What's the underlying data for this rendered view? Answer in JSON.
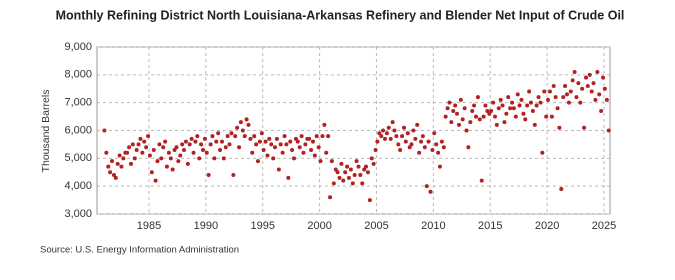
{
  "chart_data": {
    "type": "scatter",
    "title": "Monthly Refining District North Louisiana-Arkansas Refinery and Blender Net Input of Crude Oil",
    "y_label": "Thousand Barrels",
    "source": "Source: U.S. Energy Information Administration",
    "color": "#b22222",
    "xlim": [
      1980.43,
      2025.53
    ],
    "xticks": [
      1985,
      1990,
      1995,
      2000,
      2005,
      2010,
      2015,
      2020,
      2025
    ],
    "ylim": [
      3000,
      9000
    ],
    "yticks": [
      {
        "value": 3000,
        "label": "3,000"
      },
      {
        "value": 4000,
        "label": "4,000"
      },
      {
        "value": 5000,
        "label": "5,000"
      },
      {
        "value": 6000,
        "label": "6,000"
      },
      {
        "value": 7000,
        "label": "7,000"
      },
      {
        "value": 8000,
        "label": "8,000"
      },
      {
        "value": 9000,
        "label": "9,000"
      }
    ],
    "grid": true,
    "x": [
      1981.08,
      1981.25,
      1981.42,
      1981.58,
      1981.75,
      1981.92,
      1982.08,
      1982.25,
      1982.42,
      1982.58,
      1982.75,
      1982.92,
      1983.08,
      1983.25,
      1983.42,
      1983.58,
      1983.75,
      1983.92,
      1984.08,
      1984.25,
      1984.42,
      1984.58,
      1984.75,
      1984.92,
      1985.08,
      1985.25,
      1985.42,
      1985.58,
      1985.75,
      1985.92,
      1986.08,
      1986.25,
      1986.42,
      1986.58,
      1986.75,
      1986.92,
      1987.08,
      1987.25,
      1987.42,
      1987.58,
      1987.75,
      1987.92,
      1988.08,
      1988.25,
      1988.42,
      1988.58,
      1988.75,
      1988.92,
      1989.08,
      1989.25,
      1989.42,
      1989.58,
      1989.75,
      1989.92,
      1990.08,
      1990.25,
      1990.42,
      1990.58,
      1990.75,
      1990.92,
      1991.08,
      1991.25,
      1991.42,
      1991.58,
      1991.75,
      1991.92,
      1992.08,
      1992.25,
      1992.42,
      1992.58,
      1992.75,
      1992.92,
      1993.08,
      1993.25,
      1993.42,
      1993.58,
      1993.75,
      1993.92,
      1994.08,
      1994.25,
      1994.42,
      1994.58,
      1994.75,
      1994.92,
      1995.08,
      1995.25,
      1995.42,
      1995.58,
      1995.75,
      1995.92,
      1996.08,
      1996.25,
      1996.42,
      1996.58,
      1996.75,
      1996.92,
      1997.08,
      1997.25,
      1997.42,
      1997.58,
      1997.75,
      1997.92,
      1998.08,
      1998.25,
      1998.42,
      1998.58,
      1998.75,
      1998.92,
      1999.08,
      1999.25,
      1999.42,
      1999.58,
      1999.75,
      1999.92,
      2000.08,
      2000.25,
      2000.42,
      2000.58,
      2000.75,
      2000.92,
      2001.08,
      2001.25,
      2001.42,
      2001.58,
      2001.75,
      2001.92,
      2002.08,
      2002.25,
      2002.42,
      2002.58,
      2002.75,
      2002.92,
      2003.08,
      2003.25,
      2003.42,
      2003.58,
      2003.75,
      2003.92,
      2004.08,
      2004.25,
      2004.42,
      2004.58,
      2004.75,
      2004.92,
      2005.08,
      2005.25,
      2005.42,
      2005.58,
      2005.75,
      2005.92,
      2006.08,
      2006.25,
      2006.42,
      2006.58,
      2006.75,
      2006.92,
      2007.08,
      2007.25,
      2007.42,
      2007.58,
      2007.75,
      2007.92,
      2008.08,
      2008.25,
      2008.42,
      2008.58,
      2008.75,
      2008.92,
      2009.08,
      2009.25,
      2009.42,
      2009.58,
      2009.75,
      2009.92,
      2010.08,
      2010.25,
      2010.42,
      2010.58,
      2010.75,
      2010.92,
      2011.08,
      2011.25,
      2011.42,
      2011.58,
      2011.75,
      2011.92,
      2012.08,
      2012.25,
      2012.42,
      2012.58,
      2012.75,
      2012.92,
      2013.08,
      2013.25,
      2013.42,
      2013.58,
      2013.75,
      2013.92,
      2014.08,
      2014.25,
      2014.42,
      2014.58,
      2014.75,
      2014.92,
      2015.08,
      2015.25,
      2015.42,
      2015.58,
      2015.75,
      2015.92,
      2016.08,
      2016.25,
      2016.42,
      2016.58,
      2016.75,
      2016.92,
      2017.08,
      2017.25,
      2017.42,
      2017.58,
      2017.75,
      2017.92,
      2018.08,
      2018.25,
      2018.42,
      2018.58,
      2018.75,
      2018.92,
      2019.08,
      2019.25,
      2019.42,
      2019.58,
      2019.75,
      2019.92,
      2020.08,
      2020.25,
      2020.42,
      2020.58,
      2020.75,
      2020.92,
      2021.08,
      2021.25,
      2021.42,
      2021.58,
      2021.75,
      2021.92,
      2022.08,
      2022.25,
      2022.42,
      2022.58,
      2022.75,
      2022.92,
      2023.08,
      2023.25,
      2023.42,
      2023.58,
      2023.75,
      2023.92,
      2024.08,
      2024.25,
      2024.42,
      2024.58,
      2024.75,
      2024.92,
      2025.08,
      2025.25,
      2025.42
    ],
    "values": [
      6000,
      5200,
      4700,
      4500,
      4900,
      4400,
      4300,
      4800,
      5100,
      4700,
      5000,
      5200,
      5200,
      5400,
      4800,
      5500,
      5000,
      5300,
      5500,
      5700,
      5200,
      5600,
      5400,
      5800,
      5100,
      4500,
      5300,
      4200,
      4900,
      5500,
      5000,
      5400,
      5600,
      4700,
      5200,
      5000,
      4600,
      5300,
      5400,
      4900,
      5100,
      5500,
      5300,
      5600,
      4800,
      5500,
      5700,
      5200,
      5600,
      5800,
      5000,
      5500,
      5300,
      5700,
      5200,
      4400,
      5500,
      5800,
      5000,
      5600,
      5900,
      5300,
      5600,
      5000,
      5400,
      5800,
      5500,
      5900,
      4400,
      5800,
      6100,
      5400,
      6300,
      6000,
      5800,
      6400,
      6200,
      5700,
      5200,
      5800,
      5500,
      4900,
      5600,
      5900,
      5300,
      5600,
      5100,
      5700,
      5500,
      5000,
      5400,
      5700,
      4600,
      5500,
      5200,
      5800,
      5500,
      4300,
      5600,
      5300,
      5000,
      5700,
      5600,
      5400,
      5800,
      5200,
      5500,
      5700,
      5700,
      5300,
      5600,
      5100,
      5800,
      5400,
      4900,
      5800,
      6200,
      5200,
      5800,
      3600,
      4900,
      4100,
      4600,
      4500,
      4300,
      4800,
      4200,
      4500,
      4700,
      4300,
      4600,
      4100,
      4400,
      4900,
      4700,
      4400,
      4100,
      4600,
      4700,
      4500,
      3500,
      5000,
      4800,
      5300,
      5600,
      5900,
      5800,
      6000,
      5700,
      5900,
      6100,
      5700,
      6300,
      6000,
      5800,
      5500,
      5300,
      5800,
      6100,
      5600,
      5900,
      5400,
      5500,
      6000,
      5700,
      6200,
      5200,
      5600,
      5800,
      5400,
      4000,
      5600,
      3800,
      5300,
      5900,
      5500,
      5200,
      4700,
      5600,
      5400,
      6500,
      6800,
      7000,
      6300,
      6700,
      6900,
      6600,
      6200,
      7100,
      6400,
      6800,
      6000,
      5400,
      6300,
      6700,
      6900,
      6500,
      7200,
      6400,
      4200,
      6500,
      6900,
      6700,
      6600,
      6700,
      7000,
      6500,
      6200,
      6800,
      7100,
      6900,
      6300,
      6600,
      7200,
      6800,
      7000,
      6800,
      6500,
      7300,
      6900,
      7100,
      6600,
      6400,
      6900,
      7400,
      7000,
      6700,
      6200,
      6900,
      7200,
      7000,
      5200,
      7400,
      6500,
      7100,
      7400,
      6500,
      7600,
      7200,
      6800,
      6100,
      3900,
      7200,
      7600,
      7300,
      7000,
      7400,
      7800,
      8100,
      7200,
      7700,
      7000,
      7500,
      6100,
      7900,
      7600,
      8000,
      7400,
      7700,
      7100,
      8100,
      7300,
      6700,
      7900,
      7500,
      7100,
      6000
    ]
  }
}
